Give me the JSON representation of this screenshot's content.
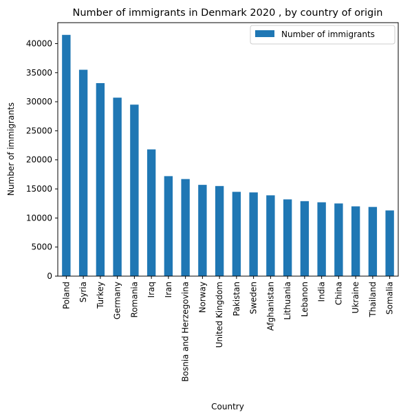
{
  "chart_data": {
    "type": "bar",
    "title": "Number of immigrants in Denmark 2020 , by country of origin",
    "xlabel": "Country",
    "ylabel": "Number of immigrants",
    "ylim": [
      0,
      43600
    ],
    "yticks": [
      0,
      5000,
      10000,
      15000,
      20000,
      25000,
      30000,
      35000,
      40000
    ],
    "grid": false,
    "legend_position": "top-right",
    "categories": [
      "Poland",
      "Syria",
      "Turkey",
      "Germany",
      "Romania",
      "Iraq",
      "Iran",
      "Bosnia and Herzegovina",
      "Norway",
      "United Kingdom",
      "Pakistan",
      "Sweden",
      "Afghanistan",
      "Lithuania",
      "Lebanon",
      "India",
      "China",
      "Ukraine",
      "Thailand",
      "Somalia"
    ],
    "series": [
      {
        "name": "Number of immigrants",
        "color": "#1f77b4",
        "values": [
          41500,
          35500,
          33200,
          30700,
          29500,
          21800,
          17200,
          16700,
          15700,
          15500,
          14500,
          14400,
          13900,
          13200,
          12900,
          12700,
          12500,
          12000,
          11900,
          11300
        ]
      }
    ]
  }
}
